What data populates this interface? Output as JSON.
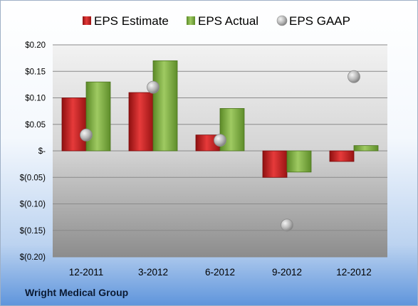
{
  "company_label": "Wright Medical Group",
  "chart_data": {
    "type": "bar",
    "categories": [
      "12-2011",
      "3-2012",
      "6-2012",
      "9-2012",
      "12-2012"
    ],
    "series": [
      {
        "name": "EPS Estimate",
        "kind": "bar",
        "color": "#d42a2a",
        "values": [
          0.1,
          0.11,
          0.03,
          -0.05,
          -0.02
        ]
      },
      {
        "name": "EPS Actual",
        "kind": "bar",
        "color": "#86b54a",
        "values": [
          0.13,
          0.17,
          0.08,
          -0.04,
          0.01
        ]
      },
      {
        "name": "EPS GAAP",
        "kind": "scatter",
        "color": "#a8a8a8",
        "values": [
          0.03,
          0.12,
          0.02,
          -0.14,
          0.14
        ]
      }
    ],
    "yticks": [
      0.2,
      0.15,
      0.1,
      0.05,
      0,
      -0.05,
      -0.1,
      -0.15,
      -0.2
    ],
    "ytick_labels": [
      "$0.20",
      "$0.15",
      "$0.10",
      "$0.05",
      "$-",
      "$(0.05)",
      "$(0.10)",
      "$(0.15)",
      "$(0.20)"
    ],
    "ylim": [
      -0.2,
      0.2
    ],
    "grid": true,
    "legend_position": "top"
  }
}
